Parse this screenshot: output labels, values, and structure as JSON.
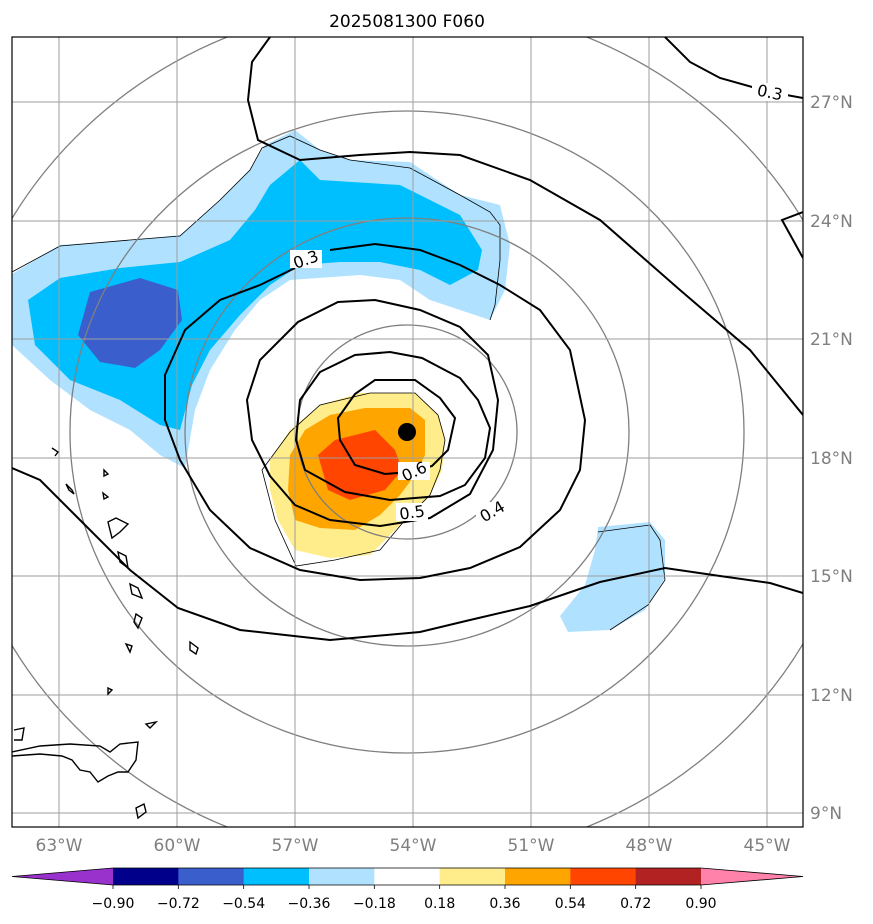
{
  "title": "2025081300 F060",
  "map": {
    "lat_labels": [
      "27°N",
      "24°N",
      "21°N",
      "18°N",
      "15°N",
      "12°N",
      "9°N"
    ],
    "lon_labels": [
      "63°W",
      "60°W",
      "57°W",
      "54°W",
      "51°W",
      "48°W",
      "45°W"
    ],
    "contour_labels": [
      "0.3",
      "0.3",
      "0.6",
      "0.5",
      "0.4"
    ],
    "storm_center": {
      "lat": 18.6,
      "lon": -54.1
    }
  },
  "colorbar": {
    "ticks": [
      "−0.90",
      "−0.72",
      "−0.54",
      "−0.36",
      "−0.18",
      "0.18",
      "0.36",
      "0.54",
      "0.72",
      "0.90"
    ],
    "colors": [
      "#9932cc",
      "#00008b",
      "#3a5fcd",
      "#00bfff",
      "#b0e2ff",
      "#ffffff",
      "#ffec8b",
      "#ffa500",
      "#ff4500",
      "#b22222",
      "#ff82ab"
    ]
  }
}
